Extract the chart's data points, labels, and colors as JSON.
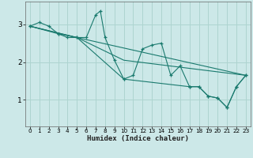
{
  "xlabel": "Humidex (Indice chaleur)",
  "bg_color": "#cce8e8",
  "line_color": "#1a7a6e",
  "grid_color": "#aed4d0",
  "xlim": [
    -0.5,
    23.5
  ],
  "ylim": [
    0.3,
    3.6
  ],
  "yticks": [
    1,
    2,
    3
  ],
  "xticks": [
    0,
    1,
    2,
    3,
    4,
    5,
    6,
    7,
    8,
    9,
    10,
    11,
    12,
    13,
    14,
    15,
    16,
    17,
    18,
    19,
    20,
    21,
    22,
    23
  ],
  "series1": [
    [
      0,
      2.95
    ],
    [
      1,
      3.05
    ],
    [
      2,
      2.95
    ],
    [
      3,
      2.75
    ],
    [
      4,
      2.65
    ],
    [
      5,
      2.65
    ],
    [
      6,
      2.65
    ],
    [
      7,
      3.25
    ],
    [
      7.5,
      3.35
    ],
    [
      8,
      2.65
    ],
    [
      9,
      2.05
    ],
    [
      10,
      1.55
    ],
    [
      11,
      1.65
    ],
    [
      12,
      2.35
    ],
    [
      13,
      2.45
    ],
    [
      14,
      2.5
    ],
    [
      15,
      1.65
    ],
    [
      16,
      1.9
    ],
    [
      17,
      1.35
    ],
    [
      18,
      1.35
    ],
    [
      19,
      1.1
    ],
    [
      20,
      1.05
    ],
    [
      21,
      0.8
    ],
    [
      22,
      1.35
    ],
    [
      23,
      1.65
    ]
  ],
  "series2": [
    [
      0,
      2.95
    ],
    [
      3,
      2.75
    ],
    [
      5,
      2.65
    ],
    [
      10,
      1.55
    ],
    [
      17,
      1.35
    ],
    [
      18,
      1.35
    ],
    [
      19,
      1.1
    ],
    [
      20,
      1.05
    ],
    [
      21,
      0.8
    ],
    [
      22,
      1.35
    ],
    [
      23,
      1.65
    ]
  ],
  "series3": [
    [
      0,
      2.95
    ],
    [
      5,
      2.65
    ],
    [
      23,
      1.65
    ]
  ],
  "series4": [
    [
      0,
      2.95
    ],
    [
      5,
      2.65
    ],
    [
      10,
      2.05
    ],
    [
      23,
      1.65
    ]
  ]
}
